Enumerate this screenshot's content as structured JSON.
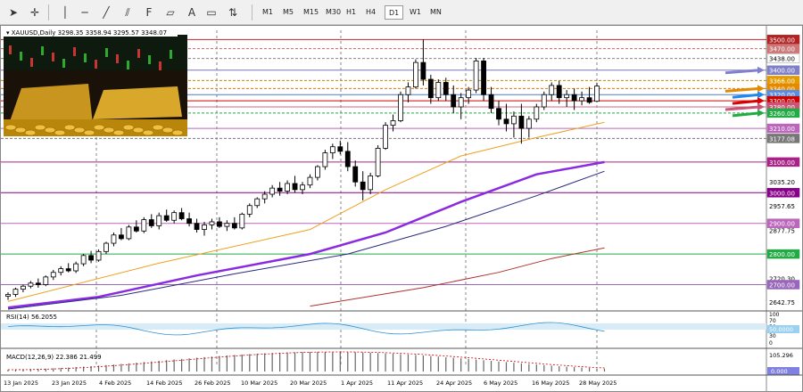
{
  "toolbar": {
    "timeframes": [
      "M1",
      "M5",
      "M15",
      "M30",
      "H1",
      "H4",
      "D1",
      "W1",
      "MN"
    ],
    "active_timeframe": "D1"
  },
  "chart_data": {
    "type": "candlestick",
    "symbol_header": "XAUUSD,Daily  3298.35 3358.94 3295.57 3348.07",
    "y_min": 2620,
    "y_max": 3530,
    "dates": [
      "13 Jan 2025",
      "23 Jan 2025",
      "4 Feb 2025",
      "14 Feb 2025",
      "26 Feb 2025",
      "10 Mar 2025",
      "20 Mar 2025",
      "1 Apr 2025",
      "11 Apr 2025",
      "24 Apr 2025",
      "6 May 2025",
      "16 May 2025",
      "28 May 2025"
    ],
    "price_ticks": [
      "3035.20",
      "2957.65",
      "2877.75",
      "2720.30",
      "2642.75"
    ],
    "hlines": [
      {
        "price": 3500,
        "label": "3500.00",
        "color": "#cc2222",
        "style": "solid",
        "box": "#b22222"
      },
      {
        "price": 3470,
        "label": "3470.00",
        "color": "#cc6666",
        "style": "dash",
        "box": "#cc7777"
      },
      {
        "price": 3438,
        "label": "3438.00",
        "color": "#888888",
        "style": "dash",
        "box": "#ffffff"
      },
      {
        "price": 3400,
        "label": "3400.00",
        "color": "#7777bb",
        "style": "solid",
        "box": "#8080c8"
      },
      {
        "price": 3366,
        "label": "3366.00",
        "color": "#cc8800",
        "style": "dash",
        "box": "#e59a00"
      },
      {
        "price": 3340,
        "label": "3340.00",
        "color": "#dd7700",
        "style": "dash",
        "box": "#e58a00"
      },
      {
        "price": 3320,
        "label": "3320.00",
        "color": "#4a7bd0",
        "style": "solid",
        "box": "#5a8ee0"
      },
      {
        "price": 3300,
        "label": "3300.00",
        "color": "#cc0000",
        "style": "solid",
        "box": "#cc0000"
      },
      {
        "price": 3280,
        "label": "3280.00",
        "color": "#cc6688",
        "style": "solid",
        "box": "#cc5577"
      },
      {
        "price": 3260,
        "label": "3260.00",
        "color": "#22aa44",
        "style": "dash",
        "box": "#22aa44"
      },
      {
        "price": 3210,
        "label": "3210.00",
        "color": "#bb66bb",
        "style": "solid",
        "box": "#bb66bb"
      },
      {
        "price": 3177.08,
        "label": "3177.08",
        "color": "#777777",
        "style": "dash",
        "box": "#777777"
      },
      {
        "price": 3100,
        "label": "3100.00",
        "color": "#aa2288",
        "style": "solid",
        "box": "#aa2288"
      },
      {
        "price": 3000,
        "label": "3000.00",
        "color": "#880088",
        "style": "solid",
        "box": "#880088"
      },
      {
        "price": 2900,
        "label": "2900.00",
        "color": "#bb66bb",
        "style": "solid",
        "box": "#bb66bb"
      },
      {
        "price": 2800,
        "label": "2800.00",
        "color": "#22aa44",
        "style": "solid",
        "box": "#22aa44"
      },
      {
        "price": 2700,
        "label": "2700.00",
        "color": "#9966bb",
        "style": "solid",
        "box": "#9966bb"
      }
    ],
    "candles": [
      [
        2662,
        2675,
        2650,
        2668
      ],
      [
        2668,
        2690,
        2660,
        2685
      ],
      [
        2685,
        2700,
        2675,
        2695
      ],
      [
        2695,
        2712,
        2688,
        2705
      ],
      [
        2705,
        2720,
        2690,
        2700
      ],
      [
        2700,
        2730,
        2695,
        2725
      ],
      [
        2725,
        2748,
        2715,
        2740
      ],
      [
        2740,
        2760,
        2730,
        2752
      ],
      [
        2752,
        2770,
        2740,
        2745
      ],
      [
        2745,
        2775,
        2738,
        2768
      ],
      [
        2768,
        2800,
        2760,
        2795
      ],
      [
        2795,
        2810,
        2770,
        2780
      ],
      [
        2780,
        2815,
        2775,
        2808
      ],
      [
        2808,
        2840,
        2800,
        2835
      ],
      [
        2835,
        2870,
        2825,
        2862
      ],
      [
        2862,
        2885,
        2845,
        2850
      ],
      [
        2850,
        2895,
        2845,
        2888
      ],
      [
        2888,
        2910,
        2870,
        2875
      ],
      [
        2875,
        2920,
        2868,
        2912
      ],
      [
        2912,
        2930,
        2885,
        2892
      ],
      [
        2892,
        2935,
        2880,
        2925
      ],
      [
        2925,
        2945,
        2905,
        2910
      ],
      [
        2910,
        2942,
        2900,
        2935
      ],
      [
        2935,
        2950,
        2910,
        2915
      ],
      [
        2915,
        2935,
        2890,
        2900
      ],
      [
        2900,
        2915,
        2870,
        2880
      ],
      [
        2880,
        2905,
        2860,
        2895
      ],
      [
        2895,
        2915,
        2880,
        2905
      ],
      [
        2905,
        2920,
        2885,
        2890
      ],
      [
        2890,
        2910,
        2875,
        2900
      ],
      [
        2900,
        2920,
        2880,
        2885
      ],
      [
        2885,
        2935,
        2880,
        2930
      ],
      [
        2930,
        2965,
        2920,
        2958
      ],
      [
        2958,
        2985,
        2950,
        2980
      ],
      [
        2980,
        3005,
        2965,
        2995
      ],
      [
        2995,
        3025,
        2985,
        3015
      ],
      [
        3015,
        3035,
        2990,
        3005
      ],
      [
        3005,
        3040,
        2995,
        3030
      ],
      [
        3030,
        3055,
        3000,
        3010
      ],
      [
        3010,
        3035,
        2995,
        3025
      ],
      [
        3025,
        3060,
        3015,
        3050
      ],
      [
        3050,
        3090,
        3040,
        3085
      ],
      [
        3085,
        3140,
        3075,
        3130
      ],
      [
        3130,
        3160,
        3110,
        3150
      ],
      [
        3150,
        3170,
        3125,
        3135
      ],
      [
        3135,
        3165,
        3070,
        3085
      ],
      [
        3085,
        3105,
        3020,
        3035
      ],
      [
        3035,
        3070,
        2975,
        3010
      ],
      [
        3010,
        3065,
        2995,
        3055
      ],
      [
        3055,
        3155,
        3050,
        3145
      ],
      [
        3145,
        3230,
        3140,
        3220
      ],
      [
        3220,
        3255,
        3200,
        3235
      ],
      [
        3235,
        3330,
        3230,
        3320
      ],
      [
        3320,
        3360,
        3295,
        3345
      ],
      [
        3345,
        3435,
        3340,
        3425
      ],
      [
        3425,
        3500,
        3350,
        3370
      ],
      [
        3370,
        3385,
        3290,
        3310
      ],
      [
        3310,
        3370,
        3300,
        3360
      ],
      [
        3360,
        3375,
        3300,
        3320
      ],
      [
        3320,
        3350,
        3260,
        3280
      ],
      [
        3280,
        3325,
        3240,
        3310
      ],
      [
        3310,
        3345,
        3290,
        3335
      ],
      [
        3335,
        3440,
        3325,
        3430
      ],
      [
        3430,
        3440,
        3300,
        3320
      ],
      [
        3320,
        3345,
        3260,
        3275
      ],
      [
        3275,
        3300,
        3220,
        3240
      ],
      [
        3240,
        3290,
        3200,
        3225
      ],
      [
        3225,
        3265,
        3180,
        3250
      ],
      [
        3250,
        3290,
        3160,
        3210
      ],
      [
        3210,
        3250,
        3180,
        3240
      ],
      [
        3240,
        3290,
        3230,
        3280
      ],
      [
        3280,
        3330,
        3270,
        3320
      ],
      [
        3320,
        3360,
        3300,
        3350
      ],
      [
        3350,
        3365,
        3290,
        3310
      ],
      [
        3310,
        3335,
        3280,
        3320
      ],
      [
        3320,
        3340,
        3270,
        3300
      ],
      [
        3300,
        3330,
        3285,
        3310
      ],
      [
        3310,
        3345,
        3290,
        3295
      ],
      [
        3298.35,
        3358.94,
        3295.57,
        3348.07
      ]
    ],
    "ma_lines": [
      {
        "name": "orange",
        "color": "#f0a020",
        "width": 1,
        "points": [
          [
            0,
            2645
          ],
          [
            20,
            2770
          ],
          [
            40,
            2880
          ],
          [
            50,
            3010
          ],
          [
            60,
            3120
          ],
          [
            70,
            3180
          ],
          [
            79,
            3230
          ]
        ]
      },
      {
        "name": "purple",
        "color": "#8a2be2",
        "width": 2.5,
        "points": [
          [
            0,
            2625
          ],
          [
            12,
            2660
          ],
          [
            25,
            2730
          ],
          [
            40,
            2800
          ],
          [
            50,
            2870
          ],
          [
            60,
            2970
          ],
          [
            70,
            3060
          ],
          [
            79,
            3100
          ]
        ]
      },
      {
        "name": "navy",
        "color": "#2a2a80",
        "width": 1,
        "points": [
          [
            0,
            2620
          ],
          [
            15,
            2665
          ],
          [
            30,
            2735
          ],
          [
            45,
            2800
          ],
          [
            58,
            2890
          ],
          [
            70,
            2990
          ],
          [
            79,
            3070
          ]
        ]
      },
      {
        "name": "brown",
        "color": "#b03030",
        "width": 1,
        "points": [
          [
            40,
            2630
          ],
          [
            55,
            2690
          ],
          [
            65,
            2740
          ],
          [
            72,
            2785
          ],
          [
            79,
            2820
          ]
        ]
      }
    ],
    "rsi": {
      "label": "RSI(14) 56.2055",
      "levels": [
        "100",
        "70",
        "50",
        "30",
        "0"
      ],
      "value_label": "50.0000"
    },
    "macd": {
      "label": "MACD(12,26,9) 22.386 21.499",
      "top_label": "105.296",
      "zero_label": "0.000"
    },
    "arrows": [
      {
        "color": "#8080cc",
        "price": 3400
      },
      {
        "color": "#2288ee",
        "price": 3320
      },
      {
        "color": "#e58a00",
        "price": 3340
      },
      {
        "color": "#dd0000",
        "price": 3300
      },
      {
        "color": "#cc5577",
        "price": 3280
      },
      {
        "color": "#22aa44",
        "price": 3260
      }
    ]
  },
  "inset": {
    "description_free": ""
  }
}
